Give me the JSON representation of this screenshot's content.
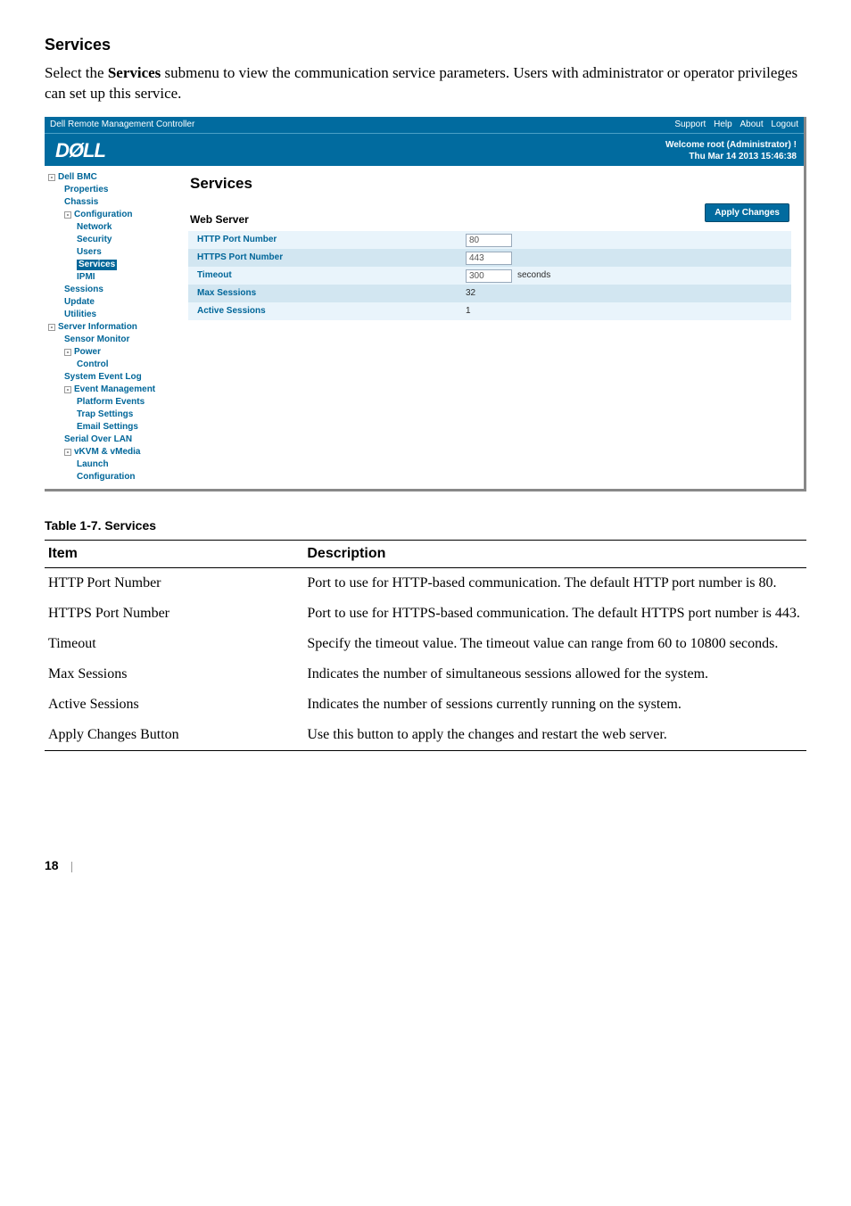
{
  "doc": {
    "heading": "Services",
    "intro_prefix": "Select the ",
    "intro_bold": "Services",
    "intro_suffix": " submenu to view the communication service parameters. Users with administrator or operator privileges can set up this service.",
    "table_caption": "Table 1-7.    Services",
    "columns": [
      "Item",
      "Description"
    ],
    "rows": [
      [
        "HTTP Port Number",
        "Port to use for HTTP-based communication. The default HTTP port number is 80."
      ],
      [
        "HTTPS Port Number",
        "Port to use for HTTPS-based communication. The default HTTPS port number is 443."
      ],
      [
        "Timeout",
        "Specify the timeout value. The timeout value can range from 60 to 10800 seconds."
      ],
      [
        "Max Sessions",
        "Indicates the number of simultaneous sessions allowed for the system."
      ],
      [
        "Active Sessions",
        "Indicates the number of sessions currently running on the system."
      ],
      [
        "Apply Changes Button",
        "Use this button to apply the changes and restart the web server."
      ]
    ],
    "page_number": "18"
  },
  "shot": {
    "window_title": "Dell Remote Management Controller",
    "top_links": [
      "Support",
      "Help",
      "About",
      "Logout"
    ],
    "logo_text": "DØLL",
    "welcome_line1": "Welcome root (Administrator) !",
    "welcome_line2": "Thu Mar 14 2013 15:46:38",
    "apply_button": "Apply Changes",
    "main_heading": "Services",
    "sub_heading": "Web Server",
    "sidebar": [
      {
        "lvl": 0,
        "label": "Dell BMC",
        "toggle": "-"
      },
      {
        "lvl": 1,
        "label": "Properties"
      },
      {
        "lvl": 1,
        "label": "Chassis"
      },
      {
        "lvl": 1,
        "label": "Configuration",
        "toggle": "-"
      },
      {
        "lvl": 2,
        "label": "Network"
      },
      {
        "lvl": 2,
        "label": "Security"
      },
      {
        "lvl": 2,
        "label": "Users"
      },
      {
        "lvl": 2,
        "label": "Services",
        "selected": true
      },
      {
        "lvl": 2,
        "label": "IPMI"
      },
      {
        "lvl": 1,
        "label": "Sessions"
      },
      {
        "lvl": 1,
        "label": "Update"
      },
      {
        "lvl": 1,
        "label": "Utilities"
      },
      {
        "lvl": 0,
        "label": "Server Information",
        "toggle": "-"
      },
      {
        "lvl": 1,
        "label": "Sensor Monitor"
      },
      {
        "lvl": 1,
        "label": "Power",
        "toggle": "-"
      },
      {
        "lvl": 2,
        "label": "Control"
      },
      {
        "lvl": 1,
        "label": "System Event Log"
      },
      {
        "lvl": 1,
        "label": "Event Management",
        "toggle": "-"
      },
      {
        "lvl": 2,
        "label": "Platform Events"
      },
      {
        "lvl": 2,
        "label": "Trap Settings"
      },
      {
        "lvl": 2,
        "label": "Email Settings"
      },
      {
        "lvl": 1,
        "label": "Serial Over LAN"
      },
      {
        "lvl": 1,
        "label": "vKVM & vMedia",
        "toggle": "-"
      },
      {
        "lvl": 2,
        "label": "Launch"
      },
      {
        "lvl": 2,
        "label": "Configuration"
      }
    ],
    "grid": [
      {
        "label": "HTTP Port Number",
        "control": "input",
        "value": "80"
      },
      {
        "label": "HTTPS Port Number",
        "control": "input",
        "value": "443"
      },
      {
        "label": "Timeout",
        "control": "input",
        "value": "300",
        "suffix": "seconds"
      },
      {
        "label": "Max Sessions",
        "control": "text",
        "value": "32"
      },
      {
        "label": "Active Sessions",
        "control": "text",
        "value": "1"
      }
    ]
  },
  "colors": {
    "dell_blue": "#016b9f",
    "nav_text": "#006699",
    "stripe_light": "#e9f4fb",
    "stripe_dark": "#d2e6f1"
  }
}
